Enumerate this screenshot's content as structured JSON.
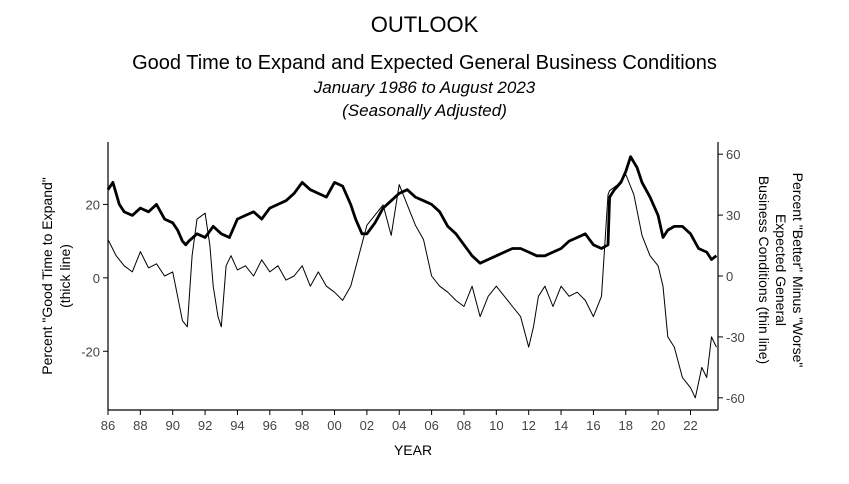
{
  "chart_data": {
    "type": "line",
    "title": "OUTLOOK",
    "subtitle": "Good Time to Expand and Expected General Business Conditions",
    "date_range": "January 1986 to August 2023",
    "adjustment": "(Seasonally Adjusted)",
    "xlabel": "YEAR",
    "ylabel_left": [
      "Percent \"Good Time to Expand\"",
      "(thick line)"
    ],
    "ylabel_right": [
      "Percent \"Better\" Minus \"Worse\"",
      "Expected General",
      "Business Conditions (thin line)"
    ],
    "x_ticks": [
      "86",
      "88",
      "90",
      "92",
      "94",
      "96",
      "98",
      "00",
      "02",
      "04",
      "06",
      "08",
      "10",
      "12",
      "14",
      "16",
      "18",
      "20",
      "22"
    ],
    "x_tick_years": [
      1986,
      1988,
      1990,
      1992,
      1994,
      1996,
      1998,
      2000,
      2002,
      2004,
      2006,
      2008,
      2010,
      2012,
      2014,
      2016,
      2018,
      2020,
      2022
    ],
    "y_left_ticks": [
      20,
      0,
      -20
    ],
    "y_right_ticks": [
      60,
      30,
      0,
      -30,
      -60
    ],
    "xlim": [
      1986,
      2023.7
    ],
    "ylim_left": [
      -36,
      37
    ],
    "ylim_right": [
      -66,
      66
    ],
    "grid": false,
    "series": [
      {
        "axis": "left",
        "style": "thick",
        "x": [
          1986.0,
          1986.3,
          1986.7,
          1987.0,
          1987.5,
          1988.0,
          1988.5,
          1989.0,
          1989.5,
          1990.0,
          1990.3,
          1990.6,
          1990.8,
          1991.0,
          1991.5,
          1992.0,
          1992.5,
          1993.0,
          1993.5,
          1994.0,
          1994.5,
          1995.0,
          1995.5,
          1996.0,
          1996.5,
          1997.0,
          1997.5,
          1998.0,
          1998.5,
          1999.0,
          1999.5,
          2000.0,
          2000.5,
          2001.0,
          2001.3,
          2001.7,
          2002.0,
          2002.5,
          2003.0,
          2003.5,
          2004.0,
          2004.5,
          2005.0,
          2005.5,
          2006.0,
          2006.5,
          2007.0,
          2007.5,
          2008.0,
          2008.5,
          2009.0,
          2009.5,
          2010.0,
          2010.5,
          2011.0,
          2011.5,
          2012.0,
          2012.5,
          2013.0,
          2013.5,
          2014.0,
          2014.5,
          2015.0,
          2015.5,
          2016.0,
          2016.5,
          2016.9,
          2017.0,
          2017.3,
          2017.7,
          2018.0,
          2018.3,
          2018.7,
          2019.0,
          2019.5,
          2020.0,
          2020.3,
          2020.6,
          2021.0,
          2021.5,
          2022.0,
          2022.5,
          2023.0,
          2023.3,
          2023.6
        ],
        "y": [
          24,
          26,
          20,
          18,
          17,
          19,
          18,
          20,
          16,
          15,
          13,
          10,
          9,
          10,
          12,
          11,
          14,
          12,
          11,
          16,
          17,
          18,
          16,
          19,
          20,
          21,
          23,
          26,
          24,
          23,
          22,
          26,
          25,
          20,
          16,
          12,
          12,
          15,
          19,
          21,
          23,
          24,
          22,
          21,
          20,
          18,
          14,
          12,
          9,
          6,
          4,
          5,
          6,
          7,
          8,
          8,
          7,
          6,
          6,
          7,
          8,
          10,
          11,
          12,
          9,
          8,
          9,
          22,
          24,
          26,
          29,
          33,
          30,
          26,
          22,
          17,
          11,
          13,
          14,
          14,
          12,
          8,
          7,
          5,
          6
        ],
        "name": ""
      },
      {
        "axis": "right",
        "style": "thin",
        "x": [
          1986.0,
          1986.5,
          1987.0,
          1987.5,
          1988.0,
          1988.5,
          1989.0,
          1989.5,
          1990.0,
          1990.3,
          1990.6,
          1990.9,
          1991.2,
          1991.5,
          1992.0,
          1992.3,
          1992.5,
          1992.8,
          1993.0,
          1993.3,
          1993.6,
          1994.0,
          1994.5,
          1995.0,
          1995.5,
          1996.0,
          1996.5,
          1997.0,
          1997.5,
          1998.0,
          1998.5,
          1999.0,
          1999.5,
          2000.0,
          2000.5,
          2001.0,
          2001.5,
          2002.0,
          2002.5,
          2003.0,
          2003.5,
          2004.0,
          2004.5,
          2005.0,
          2005.5,
          2006.0,
          2006.5,
          2007.0,
          2007.5,
          2008.0,
          2008.5,
          2009.0,
          2009.5,
          2010.0,
          2010.5,
          2011.0,
          2011.5,
          2012.0,
          2012.3,
          2012.6,
          2013.0,
          2013.5,
          2014.0,
          2014.5,
          2015.0,
          2015.5,
          2016.0,
          2016.5,
          2016.9,
          2017.0,
          2017.5,
          2018.0,
          2018.5,
          2019.0,
          2019.5,
          2020.0,
          2020.3,
          2020.6,
          2021.0,
          2021.5,
          2022.0,
          2022.3,
          2022.7,
          2023.0,
          2023.3,
          2023.6
        ],
        "y": [
          18,
          10,
          5,
          2,
          12,
          4,
          6,
          0,
          2,
          -10,
          -22,
          -25,
          10,
          28,
          31,
          15,
          -5,
          -20,
          -25,
          5,
          10,
          3,
          5,
          0,
          8,
          2,
          5,
          -2,
          0,
          5,
          -5,
          2,
          -5,
          -8,
          -12,
          -5,
          10,
          25,
          30,
          35,
          20,
          45,
          35,
          25,
          18,
          0,
          -5,
          -8,
          -12,
          -15,
          -5,
          -20,
          -10,
          -5,
          -10,
          -15,
          -20,
          -35,
          -25,
          -10,
          -5,
          -15,
          -5,
          -10,
          -8,
          -12,
          -20,
          -10,
          40,
          42,
          45,
          50,
          40,
          20,
          10,
          5,
          -5,
          -30,
          -35,
          -50,
          -55,
          -60,
          -45,
          -50,
          -30,
          -35
        ],
        "name": ""
      }
    ]
  }
}
